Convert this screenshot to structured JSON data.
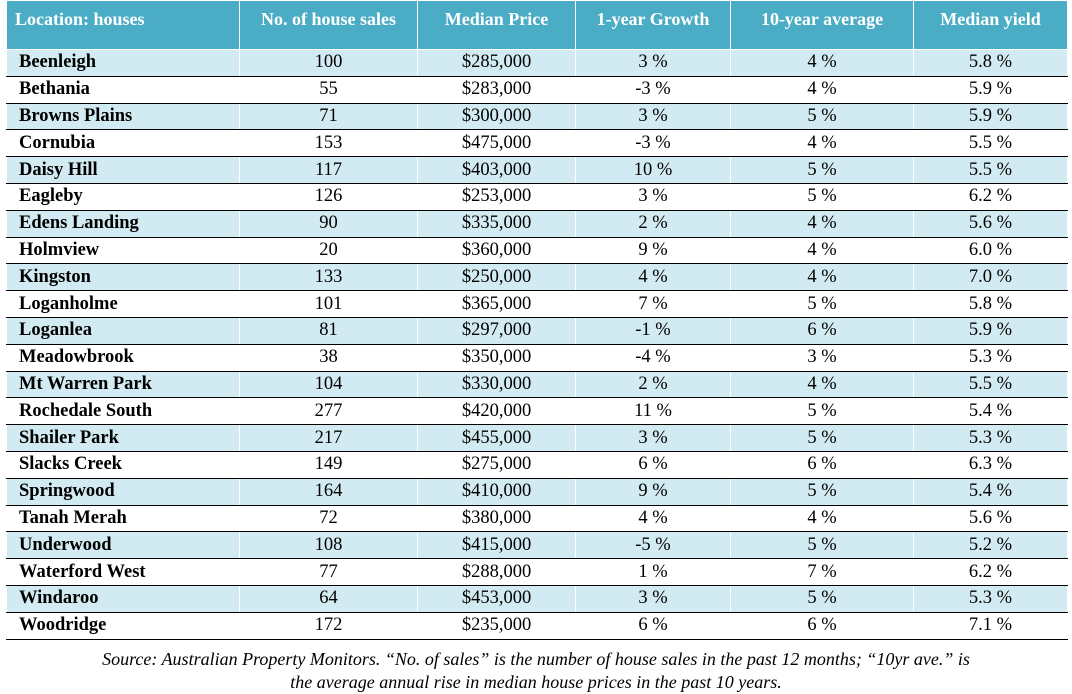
{
  "table": {
    "headers": [
      "Location: houses",
      "No. of house sales",
      "Median Price",
      "1-year Growth",
      "10-year average",
      "Median yield"
    ],
    "rows": [
      [
        "Beenleigh",
        "100",
        "$285,000",
        "3 %",
        "4 %",
        "5.8 %"
      ],
      [
        "Bethania",
        "55",
        "$283,000",
        "-3 %",
        "4 %",
        "5.9 %"
      ],
      [
        "Browns Plains",
        "71",
        "$300,000",
        "3 %",
        "5 %",
        "5.9 %"
      ],
      [
        "Cornubia",
        "153",
        "$475,000",
        "-3 %",
        "4 %",
        "5.5 %"
      ],
      [
        "Daisy Hill",
        "117",
        "$403,000",
        "10 %",
        "5 %",
        "5.5 %"
      ],
      [
        "Eagleby",
        "126",
        "$253,000",
        "3 %",
        "5 %",
        "6.2 %"
      ],
      [
        "Edens Landing",
        "90",
        "$335,000",
        "2 %",
        "4 %",
        "5.6 %"
      ],
      [
        "Holmview",
        "20",
        "$360,000",
        "9 %",
        "4 %",
        "6.0 %"
      ],
      [
        "Kingston",
        "133",
        "$250,000",
        "4 %",
        "4 %",
        "7.0 %"
      ],
      [
        "Loganholme",
        "101",
        "$365,000",
        "7 %",
        "5 %",
        "5.8 %"
      ],
      [
        "Loganlea",
        "81",
        "$297,000",
        "-1 %",
        "6 %",
        "5.9 %"
      ],
      [
        "Meadowbrook",
        "38",
        "$350,000",
        "-4 %",
        "3 %",
        "5.3 %"
      ],
      [
        "Mt Warren Park",
        "104",
        "$330,000",
        "2 %",
        "4 %",
        "5.5 %"
      ],
      [
        "Rochedale South",
        "277",
        "$420,000",
        "11 %",
        "5 %",
        "5.4 %"
      ],
      [
        "Shailer Park",
        "217",
        "$455,000",
        "3 %",
        "5 %",
        "5.3 %"
      ],
      [
        "Slacks Creek",
        "149",
        "$275,000",
        "6 %",
        "6 %",
        "6.3 %"
      ],
      [
        "Springwood",
        "164",
        "$410,000",
        "9 %",
        "5 %",
        "5.4 %"
      ],
      [
        "Tanah Merah",
        "72",
        "$380,000",
        "4 %",
        "4 %",
        "5.6 %"
      ],
      [
        "Underwood",
        "108",
        "$415,000",
        "-5 %",
        "5 %",
        "5.2 %"
      ],
      [
        "Waterford West",
        "77",
        "$288,000",
        "1 %",
        "7 %",
        "6.2 %"
      ],
      [
        "Windaroo",
        "64",
        "$453,000",
        "3 %",
        "5 %",
        "5.3 %"
      ],
      [
        "Woodridge",
        "172",
        "$235,000",
        "6 %",
        "6 %",
        "7.1 %"
      ]
    ]
  },
  "caption": {
    "line1": "Source: Australian Property Monitors. “No. of sales” is the number of house sales in the past 12 months; “10yr ave.” is",
    "line2": "the average annual rise in median house prices in the past 10 years."
  },
  "colors": {
    "header_bg": "#4bacc6",
    "band_bg": "#d2eaf1"
  }
}
